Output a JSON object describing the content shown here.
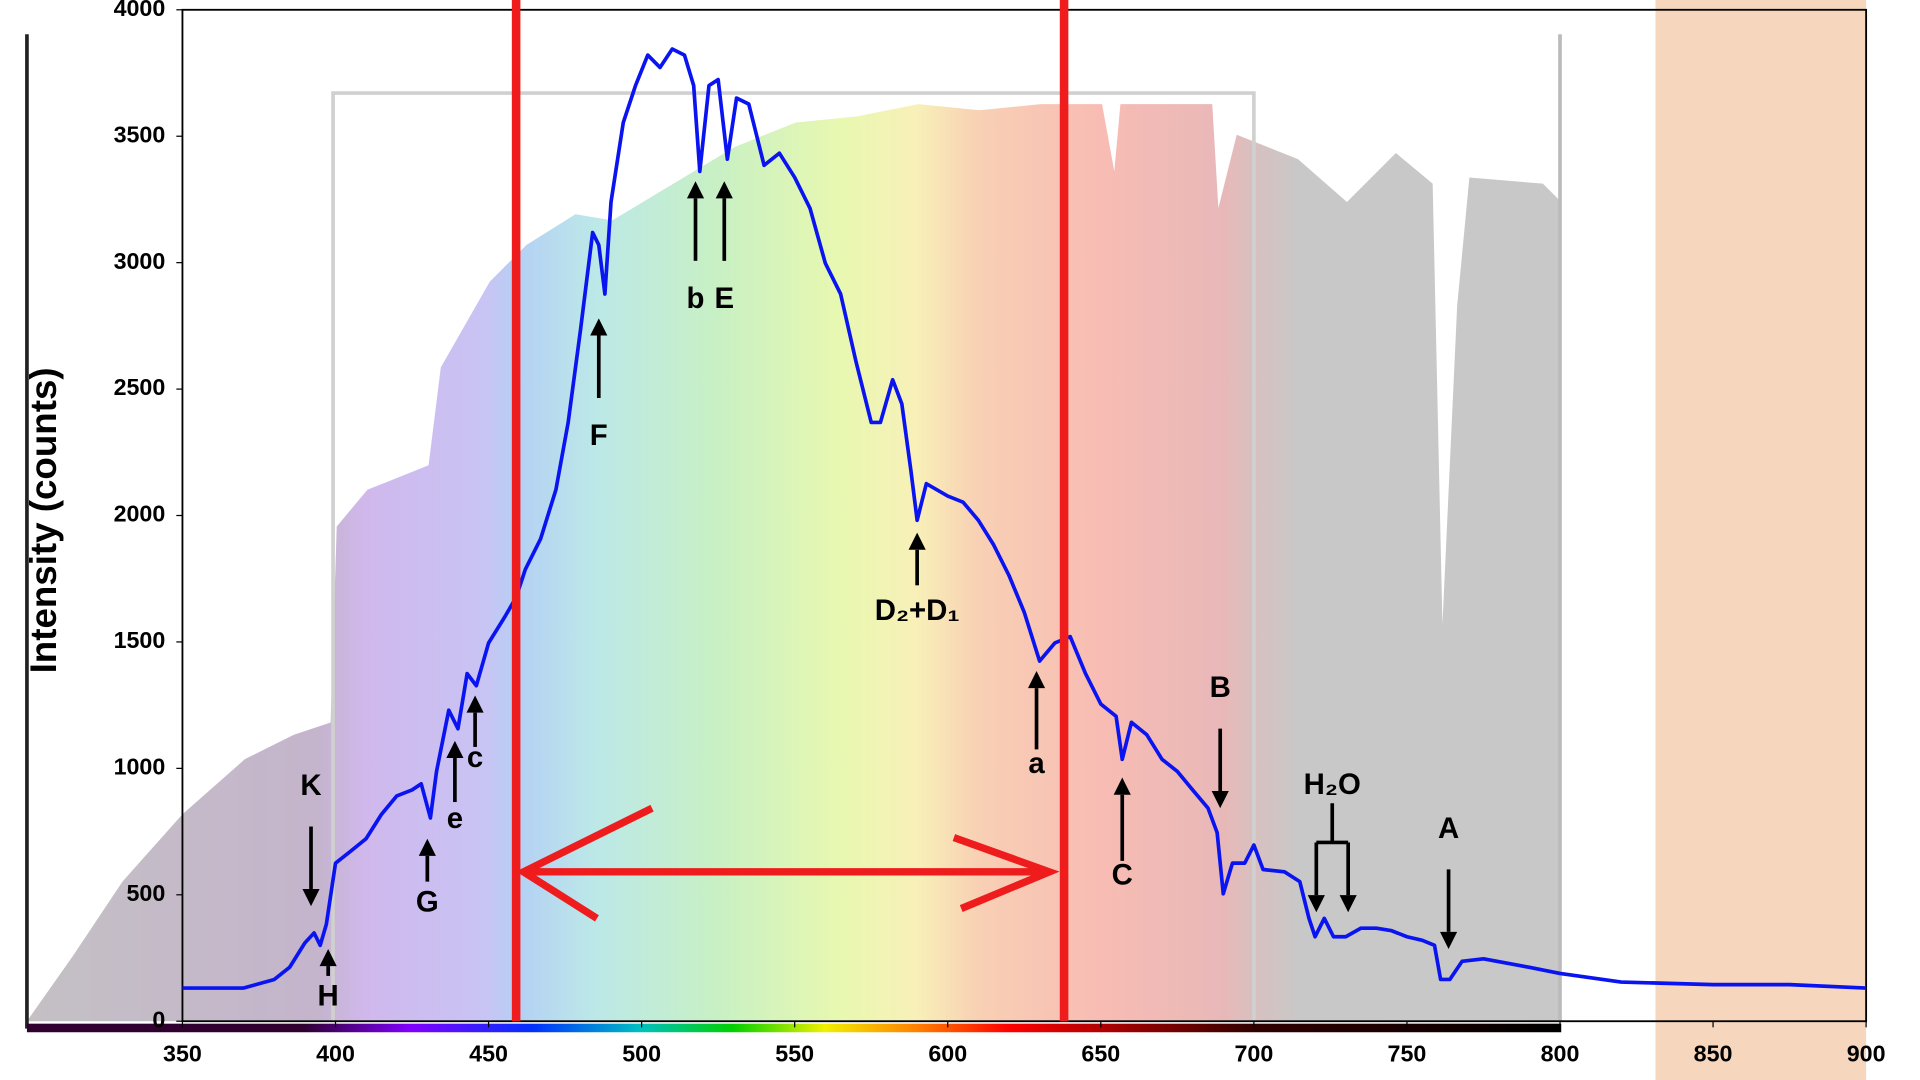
{
  "chart_data": {
    "type": "line",
    "y_label": "Intensity (counts)",
    "xlim": [
      350,
      900
    ],
    "ylim": [
      0,
      4000
    ],
    "xticks": [
      350,
      400,
      450,
      500,
      550,
      600,
      650,
      700,
      750,
      800,
      850,
      900
    ],
    "yticks": [
      0,
      500,
      1000,
      1500,
      2000,
      2500,
      3000,
      3500,
      4000
    ],
    "x": [
      350,
      370,
      380,
      385,
      390,
      393,
      395,
      397,
      400,
      405,
      410,
      415,
      420,
      425,
      428,
      431,
      433,
      437,
      440,
      443,
      446,
      450,
      455,
      459,
      462,
      467,
      472,
      476,
      480,
      484,
      486,
      488,
      490,
      494,
      498,
      502,
      506,
      510,
      514,
      517,
      519,
      522,
      525,
      528,
      531,
      535,
      540,
      545,
      550,
      555,
      560,
      565,
      570,
      575,
      578,
      582,
      585,
      588,
      590,
      593,
      600,
      605,
      610,
      615,
      620,
      625,
      630,
      635,
      640,
      645,
      650,
      655,
      657,
      660,
      665,
      670,
      675,
      680,
      685,
      688,
      690,
      693,
      697,
      700,
      703,
      710,
      715,
      718,
      720,
      723,
      726,
      730,
      735,
      740,
      745,
      750,
      755,
      759,
      761,
      764,
      768,
      775,
      790,
      800,
      820,
      850,
      875,
      900
    ],
    "series": [
      {
        "name": "Intensity",
        "color": "#0a14f0",
        "values": [
          131,
          131,
          165,
          213,
          310,
          349,
          300,
          383,
          625,
          673,
          722,
          818,
          891,
          915,
          939,
          804,
          988,
          1230,
          1157,
          1375,
          1327,
          1496,
          1593,
          1676,
          1787,
          1908,
          2102,
          2368,
          2731,
          3119,
          3070,
          2876,
          3240,
          3554,
          3700,
          3821,
          3772,
          3845,
          3821,
          3700,
          3361,
          3700,
          3724,
          3409,
          3651,
          3627,
          3385,
          3433,
          3337,
          3215,
          2998,
          2876,
          2610,
          2368,
          2368,
          2537,
          2441,
          2174,
          1981,
          2126,
          2077,
          2053,
          1981,
          1884,
          1763,
          1617,
          1424,
          1496,
          1521,
          1375,
          1254,
          1206,
          1036,
          1182,
          1133,
          1036,
          988,
          915,
          843,
          746,
          504,
          625,
          625,
          697,
          600,
          591,
          552,
          407,
          334,
          407,
          334,
          334,
          368,
          368,
          358,
          334,
          320,
          300,
          165,
          165,
          237,
          247,
          213,
          189,
          155,
          145,
          145,
          131
        ]
      }
    ],
    "vlines": [
      459,
      638
    ],
    "vline_color": "#ee1c1c",
    "annotations": [
      {
        "text": "K",
        "x": 392
      },
      {
        "text": "H",
        "x": 397.6
      },
      {
        "text": "G",
        "x": 430
      },
      {
        "text": "e",
        "x": 439
      },
      {
        "text": "c",
        "x": 445.6
      },
      {
        "text": "F",
        "x": 486
      },
      {
        "text": "b",
        "x": 517.6
      },
      {
        "text": "E",
        "x": 527
      },
      {
        "text": "D₂+D₁",
        "x": 590
      },
      {
        "text": "a",
        "x": 629
      },
      {
        "text": "C",
        "x": 657
      },
      {
        "text": "B",
        "x": 689
      },
      {
        "text": "H₂O",
        "x": 725.6
      },
      {
        "text": "A",
        "x": 763.6
      }
    ]
  }
}
